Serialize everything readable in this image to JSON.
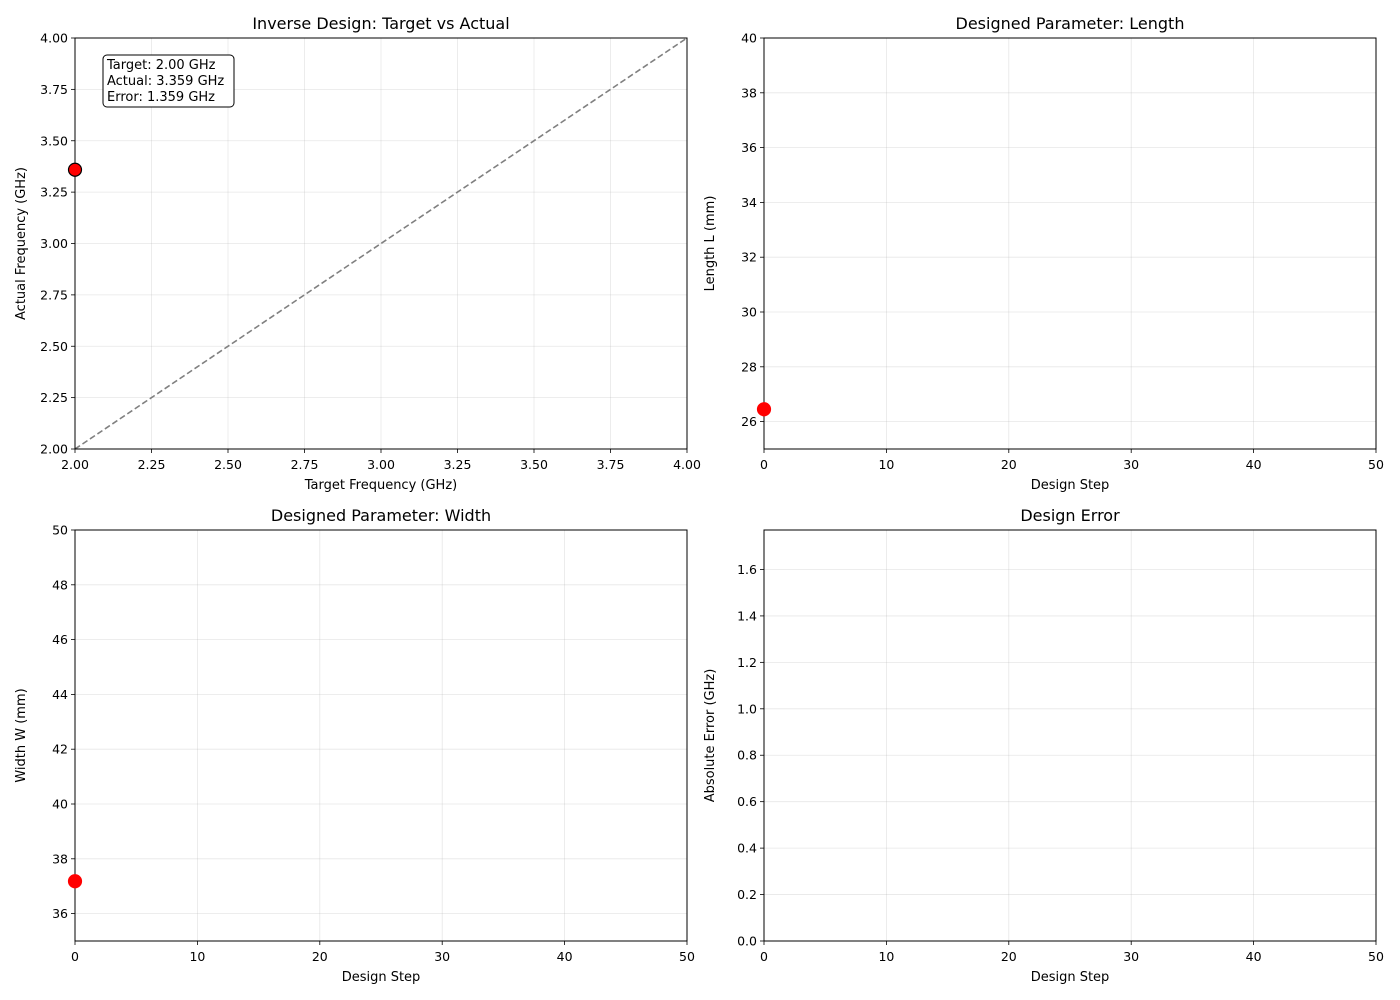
{
  "chart_data": [
    {
      "type": "scatter",
      "title": "Inverse Design: Target vs Actual",
      "xlabel": "Target Frequency (GHz)",
      "ylabel": "Actual Frequency (GHz)",
      "xlim": [
        2.0,
        4.0
      ],
      "ylim": [
        2.0,
        4.0
      ],
      "xticks": [
        "2.00",
        "2.25",
        "2.50",
        "2.75",
        "3.00",
        "3.25",
        "3.50",
        "3.75",
        "4.00"
      ],
      "yticks": [
        "2.00",
        "2.25",
        "2.50",
        "2.75",
        "3.00",
        "3.25",
        "3.50",
        "3.75",
        "4.00"
      ],
      "grid": true,
      "reference_line": {
        "style": "dashed",
        "color": "#808080",
        "from": [
          2.0,
          2.0
        ],
        "to": [
          4.0,
          4.0
        ]
      },
      "points": [
        {
          "x": 2.0,
          "y": 3.359
        }
      ],
      "marker_color": "#ff0000",
      "marker_edge": "#000000",
      "annotation": {
        "lines": [
          "Target: 2.00 GHz",
          "Actual: 3.359 GHz",
          "Error: 1.359 GHz"
        ],
        "placement": "top-left"
      }
    },
    {
      "type": "scatter",
      "title": "Designed Parameter: Length",
      "xlabel": "Design Step",
      "ylabel": "Length L (mm)",
      "xlim": [
        0,
        50
      ],
      "ylim": [
        25,
        40
      ],
      "xticks": [
        "0",
        "10",
        "20",
        "30",
        "40",
        "50"
      ],
      "yticks": [
        "26",
        "28",
        "30",
        "32",
        "34",
        "36",
        "38",
        "40"
      ],
      "grid": true,
      "points": [
        {
          "x": 0,
          "y": 26.45
        }
      ],
      "marker_color": "#ff0000",
      "marker_edge": "#ff0000"
    },
    {
      "type": "scatter",
      "title": "Designed Parameter: Width",
      "xlabel": "Design Step",
      "ylabel": "Width W (mm)",
      "xlim": [
        0,
        50
      ],
      "ylim": [
        35,
        50
      ],
      "xticks": [
        "0",
        "10",
        "20",
        "30",
        "40",
        "50"
      ],
      "yticks": [
        "36",
        "38",
        "40",
        "42",
        "44",
        "46",
        "48",
        "50"
      ],
      "grid": true,
      "points": [
        {
          "x": 0,
          "y": 37.18
        }
      ],
      "marker_color": "#ff0000",
      "marker_edge": "#ff0000"
    },
    {
      "type": "line",
      "title": "Design Error",
      "xlabel": "Design Step",
      "ylabel": "Absolute Error (GHz)",
      "xlim": [
        0,
        50
      ],
      "ylim": [
        0,
        1.77
      ],
      "xticks": [
        "0",
        "10",
        "20",
        "30",
        "40",
        "50"
      ],
      "yticks": [
        "0.0",
        "0.2",
        "0.4",
        "0.6",
        "0.8",
        "1.0",
        "1.2",
        "1.4",
        "1.6"
      ],
      "grid": true,
      "points": []
    }
  ]
}
